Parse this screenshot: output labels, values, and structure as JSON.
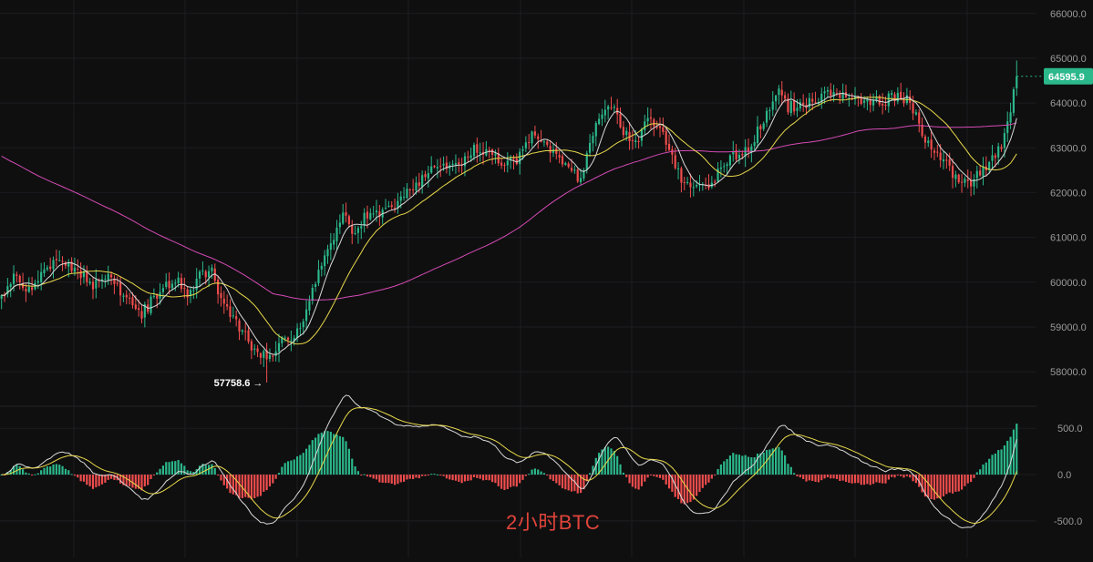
{
  "chart_data": {
    "type": "candlestick",
    "title": "2小时BTC",
    "colors": {
      "background": "#0f0f10",
      "up": "#2bb88a",
      "down": "#f04d4d",
      "ma_fast": "#d9d9d9",
      "ma_mid": "#e8d94a",
      "ma_slow": "#d64bb5",
      "macd_diff": "#d9d9d9",
      "macd_dea": "#e8d94a",
      "grid": "#1d1d20",
      "label": "#9a9a9a",
      "price_tag": "#2bb88a",
      "caption": "#e0443a"
    },
    "price_axis": {
      "ylim": [
        57250,
        66300
      ],
      "ticks": [
        {
          "value": 58000,
          "label": "58000.0"
        },
        {
          "value": 59000,
          "label": "59000.0"
        },
        {
          "value": 60000,
          "label": "60000.0"
        },
        {
          "value": 61000,
          "label": "61000.0"
        },
        {
          "value": 62000,
          "label": "62000.0"
        },
        {
          "value": 63000,
          "label": "63000.0"
        },
        {
          "value": 64000,
          "label": "64000.0"
        },
        {
          "value": 65000,
          "label": "65000.0"
        },
        {
          "value": 66000,
          "label": "66000.0"
        }
      ]
    },
    "last_price": {
      "value": 64595.9,
      "label": "64595.9"
    },
    "low_marker": {
      "value": 57758.6,
      "label": "57758.6 →",
      "bar_index": 87
    },
    "price_path": [
      [
        0,
        59700
      ],
      [
        4,
        60150
      ],
      [
        9,
        59850
      ],
      [
        14,
        60300
      ],
      [
        20,
        60550
      ],
      [
        25,
        60250
      ],
      [
        30,
        59900
      ],
      [
        35,
        60100
      ],
      [
        40,
        59700
      ],
      [
        46,
        59300
      ],
      [
        52,
        59800
      ],
      [
        57,
        60100
      ],
      [
        61,
        59750
      ],
      [
        65,
        60150
      ],
      [
        69,
        60200
      ],
      [
        73,
        59500
      ],
      [
        78,
        59000
      ],
      [
        82,
        58550
      ],
      [
        87,
        58300
      ],
      [
        92,
        58700
      ],
      [
        97,
        58850
      ],
      [
        101,
        59500
      ],
      [
        104,
        60300
      ],
      [
        108,
        60900
      ],
      [
        112,
        61500
      ],
      [
        116,
        61100
      ],
      [
        120,
        61550
      ],
      [
        125,
        61500
      ],
      [
        130,
        61850
      ],
      [
        135,
        62100
      ],
      [
        140,
        62500
      ],
      [
        145,
        62550
      ],
      [
        150,
        62550
      ],
      [
        155,
        63000
      ],
      [
        160,
        62900
      ],
      [
        165,
        62600
      ],
      [
        170,
        62800
      ],
      [
        175,
        63350
      ],
      [
        180,
        63000
      ],
      [
        185,
        62600
      ],
      [
        190,
        62300
      ],
      [
        195,
        63600
      ],
      [
        200,
        64000
      ],
      [
        204,
        63300
      ],
      [
        208,
        63150
      ],
      [
        212,
        63600
      ],
      [
        216,
        63500
      ],
      [
        220,
        62800
      ],
      [
        224,
        62100
      ],
      [
        228,
        62150
      ],
      [
        232,
        62150
      ],
      [
        236,
        62500
      ],
      [
        240,
        62800
      ],
      [
        245,
        63000
      ],
      [
        250,
        63600
      ],
      [
        255,
        64200
      ],
      [
        258,
        63900
      ],
      [
        263,
        64000
      ],
      [
        268,
        64100
      ],
      [
        273,
        64200
      ],
      [
        278,
        64100
      ],
      [
        283,
        64000
      ],
      [
        288,
        64000
      ],
      [
        293,
        64150
      ],
      [
        298,
        64050
      ],
      [
        302,
        63300
      ],
      [
        306,
        62800
      ],
      [
        310,
        62750
      ],
      [
        314,
        62150
      ],
      [
        318,
        62250
      ],
      [
        322,
        62500
      ],
      [
        326,
        62800
      ],
      [
        329,
        63200
      ],
      [
        331,
        63900
      ],
      [
        333,
        64600
      ]
    ],
    "ma_lines": [
      {
        "key": "ma_fast",
        "period": 7
      },
      {
        "key": "ma_mid",
        "period": 20
      },
      {
        "key": "ma_slow",
        "period": 90
      }
    ],
    "macd": {
      "ylim": [
        -600,
        650
      ],
      "ticks": [
        {
          "value": 500,
          "label": "500.0"
        },
        {
          "value": 0,
          "label": "0.0"
        },
        {
          "value": -500,
          "label": "-500.0"
        }
      ]
    },
    "x": {
      "bars": 334
    },
    "annotation": "2小时BTC"
  }
}
